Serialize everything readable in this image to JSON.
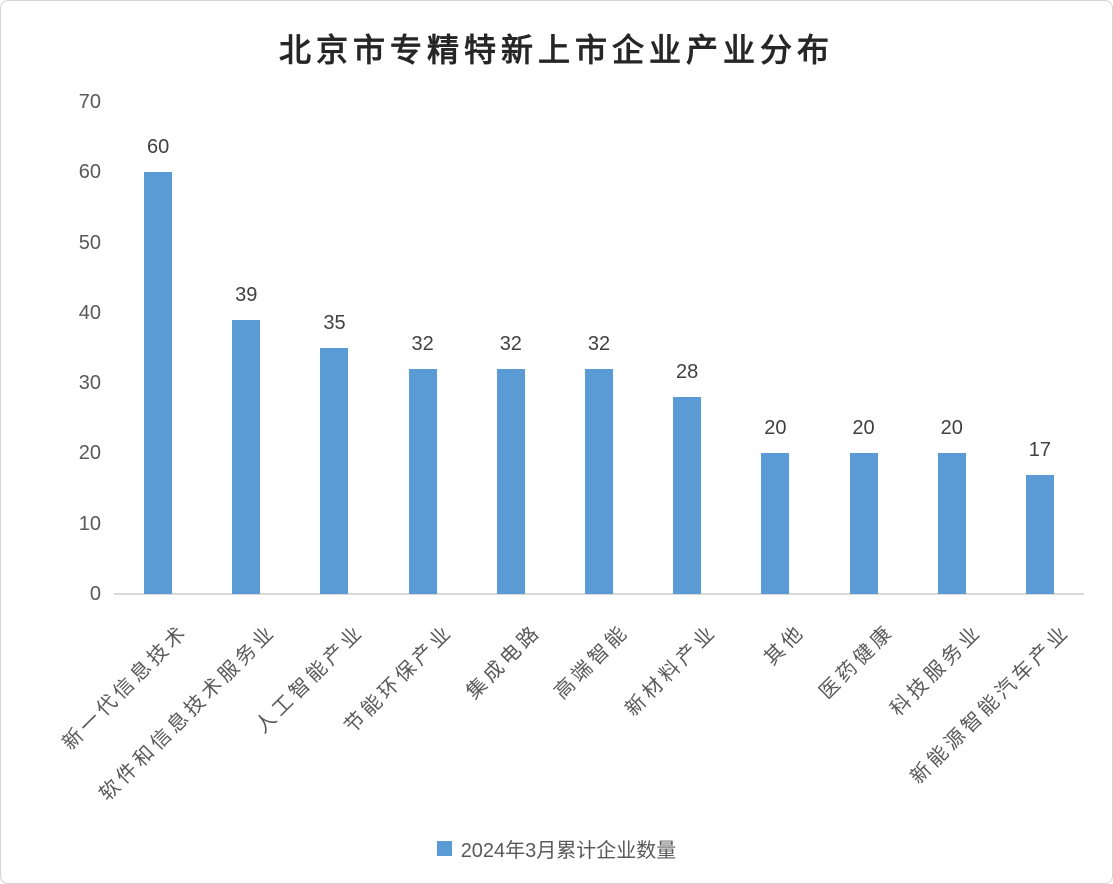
{
  "chart_data": {
    "type": "bar",
    "title": "北京市专精特新上市企业产业分布",
    "categories": [
      "新一代信息技术",
      "软件和信息技术服务业",
      "人工智能产业",
      "节能环保产业",
      "集成电路",
      "高端智能",
      "新材料产业",
      "其他",
      "医药健康",
      "科技服务业",
      "新能源智能汽车产业"
    ],
    "series": [
      {
        "name": "2024年3月累计企业数量",
        "values": [
          60,
          39,
          35,
          32,
          32,
          32,
          28,
          20,
          20,
          20,
          17
        ]
      }
    ],
    "xlabel": "",
    "ylabel": "",
    "ylim": [
      0,
      70
    ],
    "yticks": [
      0,
      10,
      20,
      30,
      40,
      50,
      60,
      70
    ],
    "grid": false,
    "data_labels_shown": true,
    "legend_position": "bottom",
    "colors": {
      "bar": "#5b9bd5",
      "axis_line": "#d9d9d9",
      "tick_label": "#595959",
      "category_label": "#595959",
      "data_label": "#404040",
      "title": "#262626",
      "background": "#ffffff",
      "frame_border": "#d4d4d4"
    }
  }
}
